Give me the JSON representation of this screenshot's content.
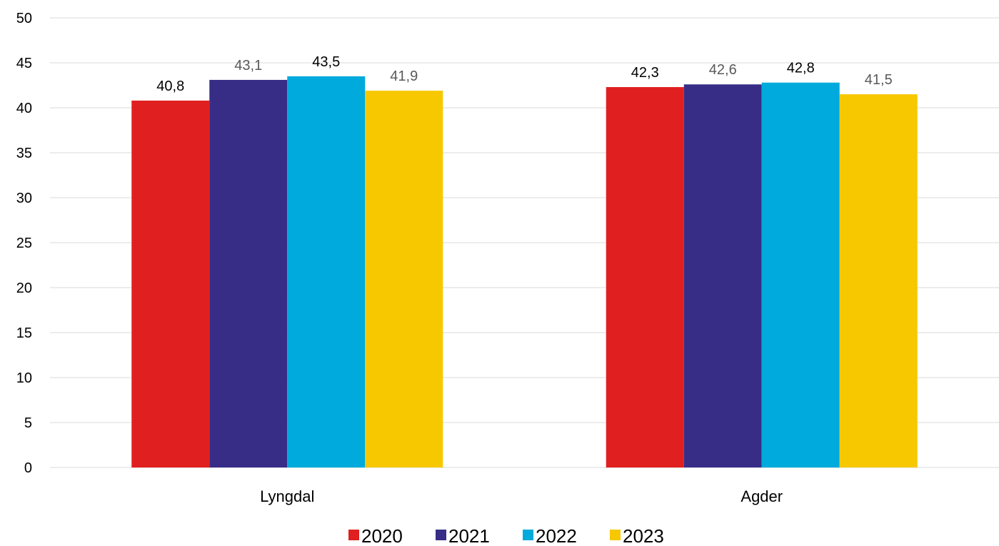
{
  "chart_data": {
    "type": "bar",
    "categories": [
      "Lyngdal",
      "Agder"
    ],
    "series": [
      {
        "name": "2020",
        "color": "#e02020",
        "label_color": "#000000",
        "values": [
          40.8,
          42.3
        ],
        "labels": [
          "40,8",
          "42,3"
        ]
      },
      {
        "name": "2021",
        "color": "#372d87",
        "label_color": "#595959",
        "values": [
          43.1,
          42.6
        ],
        "labels": [
          "43,1",
          "42,6"
        ]
      },
      {
        "name": "2022",
        "color": "#00aadc",
        "label_color": "#000000",
        "values": [
          43.5,
          42.8
        ],
        "labels": [
          "43,5",
          "42,8"
        ]
      },
      {
        "name": "2023",
        "color": "#f7c800",
        "label_color": "#595959",
        "values": [
          41.9,
          41.5
        ],
        "labels": [
          "41,9",
          "41,5"
        ]
      }
    ],
    "ylim": [
      0,
      50
    ],
    "yticks": [
      "0",
      "5",
      "10",
      "15",
      "20",
      "25",
      "30",
      "35",
      "40",
      "45",
      "50"
    ],
    "grid": true,
    "legend_position": "bottom",
    "title": "",
    "xlabel": "",
    "ylabel": ""
  }
}
